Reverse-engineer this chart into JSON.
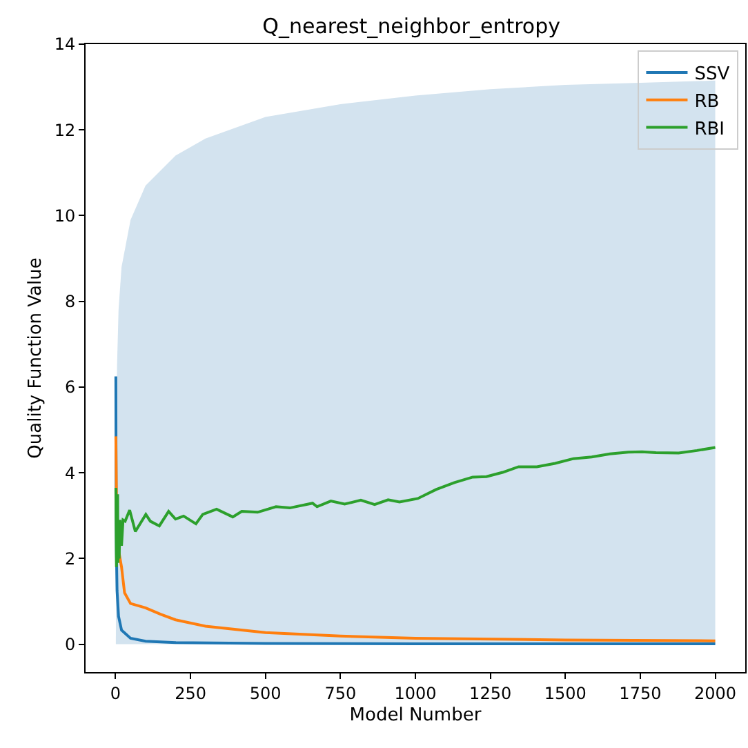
{
  "chart_data": {
    "type": "line",
    "title": "Q_nearest_neighbor_entropy",
    "xlabel": "Model Number",
    "ylabel": "Quality Function Value",
    "xlim": [
      -100,
      2100
    ],
    "ylim": [
      -0.65,
      14.0
    ],
    "xticks": [
      0,
      250,
      500,
      750,
      1000,
      1250,
      1500,
      1750,
      2000
    ],
    "yticks": [
      0,
      2,
      4,
      6,
      8,
      10,
      12,
      14
    ],
    "legend": "top right",
    "series": [
      {
        "type": "area",
        "color": "#d3e3ef",
        "x": [
          1,
          2,
          3,
          5,
          10,
          20,
          50,
          100,
          200,
          300,
          500,
          750,
          1000,
          1250,
          1500,
          1750,
          2000
        ],
        "values": [
          0,
          3.0,
          5.0,
          6.5,
          7.8,
          8.8,
          9.9,
          10.7,
          11.4,
          11.8,
          12.3,
          12.6,
          12.8,
          12.95,
          13.05,
          13.1,
          13.15
        ]
      },
      {
        "name": "SSV",
        "color": "#1f77b4",
        "x": [
          1,
          2,
          3,
          5,
          10,
          20,
          50,
          100,
          200,
          500,
          1000,
          2000
        ],
        "values": [
          6.25,
          3.1,
          2.1,
          1.25,
          0.65,
          0.33,
          0.14,
          0.07,
          0.04,
          0.02,
          0.01,
          0.01
        ]
      },
      {
        "name": "RB",
        "color": "#ff7f0e",
        "x": [
          1,
          3,
          5,
          10,
          20,
          30,
          50,
          100,
          150,
          200,
          300,
          500,
          750,
          1000,
          1500,
          2000
        ],
        "values": [
          4.85,
          3.5,
          2.9,
          2.2,
          1.8,
          1.2,
          0.95,
          0.85,
          0.7,
          0.57,
          0.42,
          0.27,
          0.19,
          0.14,
          0.1,
          0.08
        ]
      },
      {
        "name": "RBI",
        "color": "#2ca02c",
        "x": [
          1,
          2,
          3,
          4,
          5,
          7,
          8,
          10,
          12,
          15,
          20,
          25,
          32,
          47,
          66,
          101,
          116,
          146,
          177,
          200,
          227,
          268,
          291,
          337,
          391,
          421,
          474,
          535,
          581,
          657,
          672,
          718,
          764,
          818,
          864,
          909,
          947,
          1008,
          1069,
          1130,
          1191,
          1237,
          1291,
          1344,
          1405,
          1466,
          1527,
          1588,
          1649,
          1710,
          1756,
          1802,
          1878,
          1939,
          2000
        ],
        "values": [
          3.65,
          2.6,
          1.8,
          3.3,
          2.2,
          3.5,
          1.9,
          2.5,
          2.0,
          2.9,
          2.3,
          2.9,
          2.87,
          3.13,
          2.63,
          3.03,
          2.87,
          2.76,
          3.1,
          2.92,
          2.99,
          2.81,
          3.03,
          3.15,
          2.97,
          3.1,
          3.08,
          3.21,
          3.18,
          3.29,
          3.21,
          3.34,
          3.27,
          3.36,
          3.26,
          3.37,
          3.32,
          3.4,
          3.61,
          3.77,
          3.9,
          3.91,
          4.01,
          4.14,
          4.14,
          4.22,
          4.33,
          4.37,
          4.44,
          4.48,
          4.49,
          4.47,
          4.46,
          4.52,
          4.59
        ]
      }
    ]
  }
}
